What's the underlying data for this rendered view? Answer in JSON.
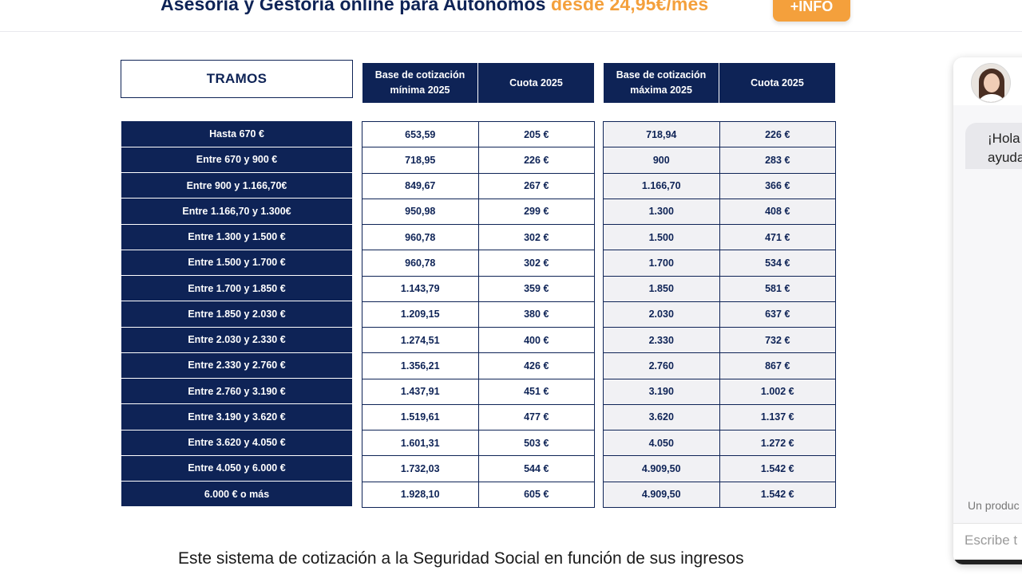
{
  "banner": {
    "text_main": "Asesoría y Gestoría online para Autónomos",
    "text_price": "desde 24,95€/mes",
    "info_button": "+INFO"
  },
  "table": {
    "tramos_header": "TRAMOS",
    "min_headers": [
      "Base de cotización mínima 2025",
      "Cuota 2025"
    ],
    "max_headers": [
      "Base de cotización máxima 2025",
      "Cuota 2025"
    ],
    "rows": [
      {
        "tramo": "Hasta 670 €",
        "base_min": "653,59",
        "cuota_min": "205 €",
        "base_max": "718,94",
        "cuota_max": "226 €"
      },
      {
        "tramo": "Entre 670 y 900 €",
        "base_min": "718,95",
        "cuota_min": "226 €",
        "base_max": "900",
        "cuota_max": "283 €"
      },
      {
        "tramo": "Entre 900 y 1.166,70€",
        "base_min": "849,67",
        "cuota_min": "267 €",
        "base_max": "1.166,70",
        "cuota_max": "366 €"
      },
      {
        "tramo": "Entre 1.166,70 y 1.300€",
        "base_min": "950,98",
        "cuota_min": "299 €",
        "base_max": "1.300",
        "cuota_max": "408 €"
      },
      {
        "tramo": "Entre 1.300 y 1.500 €",
        "base_min": "960,78",
        "cuota_min": "302 €",
        "base_max": "1.500",
        "cuota_max": "471 €"
      },
      {
        "tramo": "Entre 1.500 y 1.700 €",
        "base_min": "960,78",
        "cuota_min": "302 €",
        "base_max": "1.700",
        "cuota_max": "534 €"
      },
      {
        "tramo": "Entre 1.700 y 1.850 €",
        "base_min": "1.143,79",
        "cuota_min": "359 €",
        "base_max": "1.850",
        "cuota_max": "581 €"
      },
      {
        "tramo": "Entre 1.850 y 2.030 €",
        "base_min": "1.209,15",
        "cuota_min": "380 €",
        "base_max": "2.030",
        "cuota_max": "637 €"
      },
      {
        "tramo": "Entre 2.030 y 2.330 €",
        "base_min": "1.274,51",
        "cuota_min": "400 €",
        "base_max": "2.330",
        "cuota_max": "732 €"
      },
      {
        "tramo": "Entre 2.330 y 2.760 €",
        "base_min": "1.356,21",
        "cuota_min": "426 €",
        "base_max": "2.760",
        "cuota_max": "867 €"
      },
      {
        "tramo": "Entre 2.760 y 3.190 €",
        "base_min": "1.437,91",
        "cuota_min": "451 €",
        "base_max": "3.190",
        "cuota_max": "1.002 €"
      },
      {
        "tramo": "Entre 3.190 y 3.620 €",
        "base_min": "1.519,61",
        "cuota_min": "477 €",
        "base_max": "3.620",
        "cuota_max": "1.137 €"
      },
      {
        "tramo": "Entre 3.620 y 4.050 €",
        "base_min": "1.601,31",
        "cuota_min": "503 €",
        "base_max": "4.050",
        "cuota_max": "1.272 €"
      },
      {
        "tramo": "Entre 4.050 y 6.000 €",
        "base_min": "1.732,03",
        "cuota_min": "544 €",
        "base_max": "4.909,50",
        "cuota_max": "1.542 €"
      },
      {
        "tramo": "6.000 € o más",
        "base_min": "1.928,10",
        "cuota_min": "605 €",
        "base_max": "4.909,50",
        "cuota_max": "1.542 €"
      }
    ]
  },
  "paragraph": {
    "text": "Este sistema de cotización a la Seguridad Social en función de sus ingresos"
  },
  "chat": {
    "greeting_line1": "¡Hola",
    "greeting_line2": "ayuda",
    "footer_note": "Un produc",
    "input_placeholder": "Escribe t"
  },
  "colors": {
    "navy": "#0e2356",
    "orange": "#f4a03c",
    "max_cell_bg": "#f1f1f4"
  }
}
